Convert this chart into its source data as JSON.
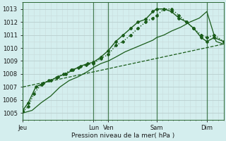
{
  "bg_color": "#d4eeee",
  "grid_color": "#c0d8d8",
  "grid_minor_color": "#dde8e8",
  "line_color": "#1a5c1a",
  "xlabel": "Pression niveau de la mer( hPa )",
  "ylim": [
    1004.5,
    1013.5
  ],
  "yticks": [
    1005,
    1006,
    1007,
    1008,
    1009,
    1010,
    1011,
    1012,
    1013
  ],
  "xlim": [
    0,
    108
  ],
  "xtick_pos": [
    0,
    38,
    46,
    72,
    99
  ],
  "xtick_labels": [
    "Jeu",
    "Lun",
    "Ven",
    "Sam",
    "Dim"
  ],
  "vlines": [
    0,
    38,
    46,
    72,
    99
  ],
  "series": [
    {
      "x": [
        0,
        108
      ],
      "y": [
        1007.0,
        1010.3
      ],
      "linestyle": "--",
      "linewidth": 0.9,
      "marker": null
    },
    {
      "x": [
        0,
        5,
        10,
        15,
        20,
        25,
        30,
        35,
        38,
        42,
        46,
        50,
        55,
        60,
        65,
        70,
        72,
        76,
        80,
        85,
        90,
        95,
        99,
        104,
        108
      ],
      "y": [
        1005.0,
        1005.2,
        1005.8,
        1006.3,
        1007.0,
        1007.5,
        1007.8,
        1008.2,
        1008.5,
        1008.8,
        1009.0,
        1009.3,
        1009.7,
        1010.0,
        1010.3,
        1010.6,
        1010.8,
        1011.0,
        1011.3,
        1011.6,
        1012.0,
        1012.3,
        1012.8,
        1010.5,
        1010.3
      ],
      "linestyle": "-",
      "linewidth": 0.9,
      "marker": null
    },
    {
      "x": [
        0,
        3,
        6,
        10,
        14,
        18,
        22,
        26,
        30,
        34,
        38,
        42,
        46,
        50,
        54,
        58,
        62,
        66,
        70,
        72,
        76,
        80,
        84,
        88,
        92,
        96,
        99,
        103,
        108
      ],
      "y": [
        1005.1,
        1005.5,
        1006.5,
        1007.2,
        1007.5,
        1007.7,
        1008.0,
        1008.3,
        1008.5,
        1008.7,
        1008.8,
        1009.2,
        1009.5,
        1010.2,
        1010.5,
        1011.0,
        1011.5,
        1012.0,
        1012.3,
        1012.5,
        1013.0,
        1013.0,
        1012.5,
        1012.0,
        1011.5,
        1011.0,
        1010.8,
        1011.0,
        1010.5
      ],
      "linestyle": ":",
      "linewidth": 1.0,
      "marker": "D",
      "markersize": 2.0
    },
    {
      "x": [
        0,
        3,
        7,
        11,
        15,
        19,
        23,
        27,
        31,
        35,
        38,
        42,
        46,
        50,
        54,
        58,
        62,
        66,
        70,
        72,
        76,
        80,
        84,
        88,
        92,
        96,
        99,
        103,
        108
      ],
      "y": [
        1005.2,
        1005.8,
        1007.0,
        1007.3,
        1007.5,
        1007.8,
        1008.0,
        1008.3,
        1008.6,
        1008.8,
        1008.9,
        1009.3,
        1009.8,
        1010.5,
        1011.0,
        1011.5,
        1012.0,
        1012.2,
        1012.8,
        1013.0,
        1013.0,
        1012.8,
        1012.3,
        1012.0,
        1011.5,
        1010.8,
        1010.5,
        1010.8,
        1010.5
      ],
      "linestyle": "-",
      "linewidth": 1.0,
      "marker": "D",
      "markersize": 2.0
    }
  ]
}
